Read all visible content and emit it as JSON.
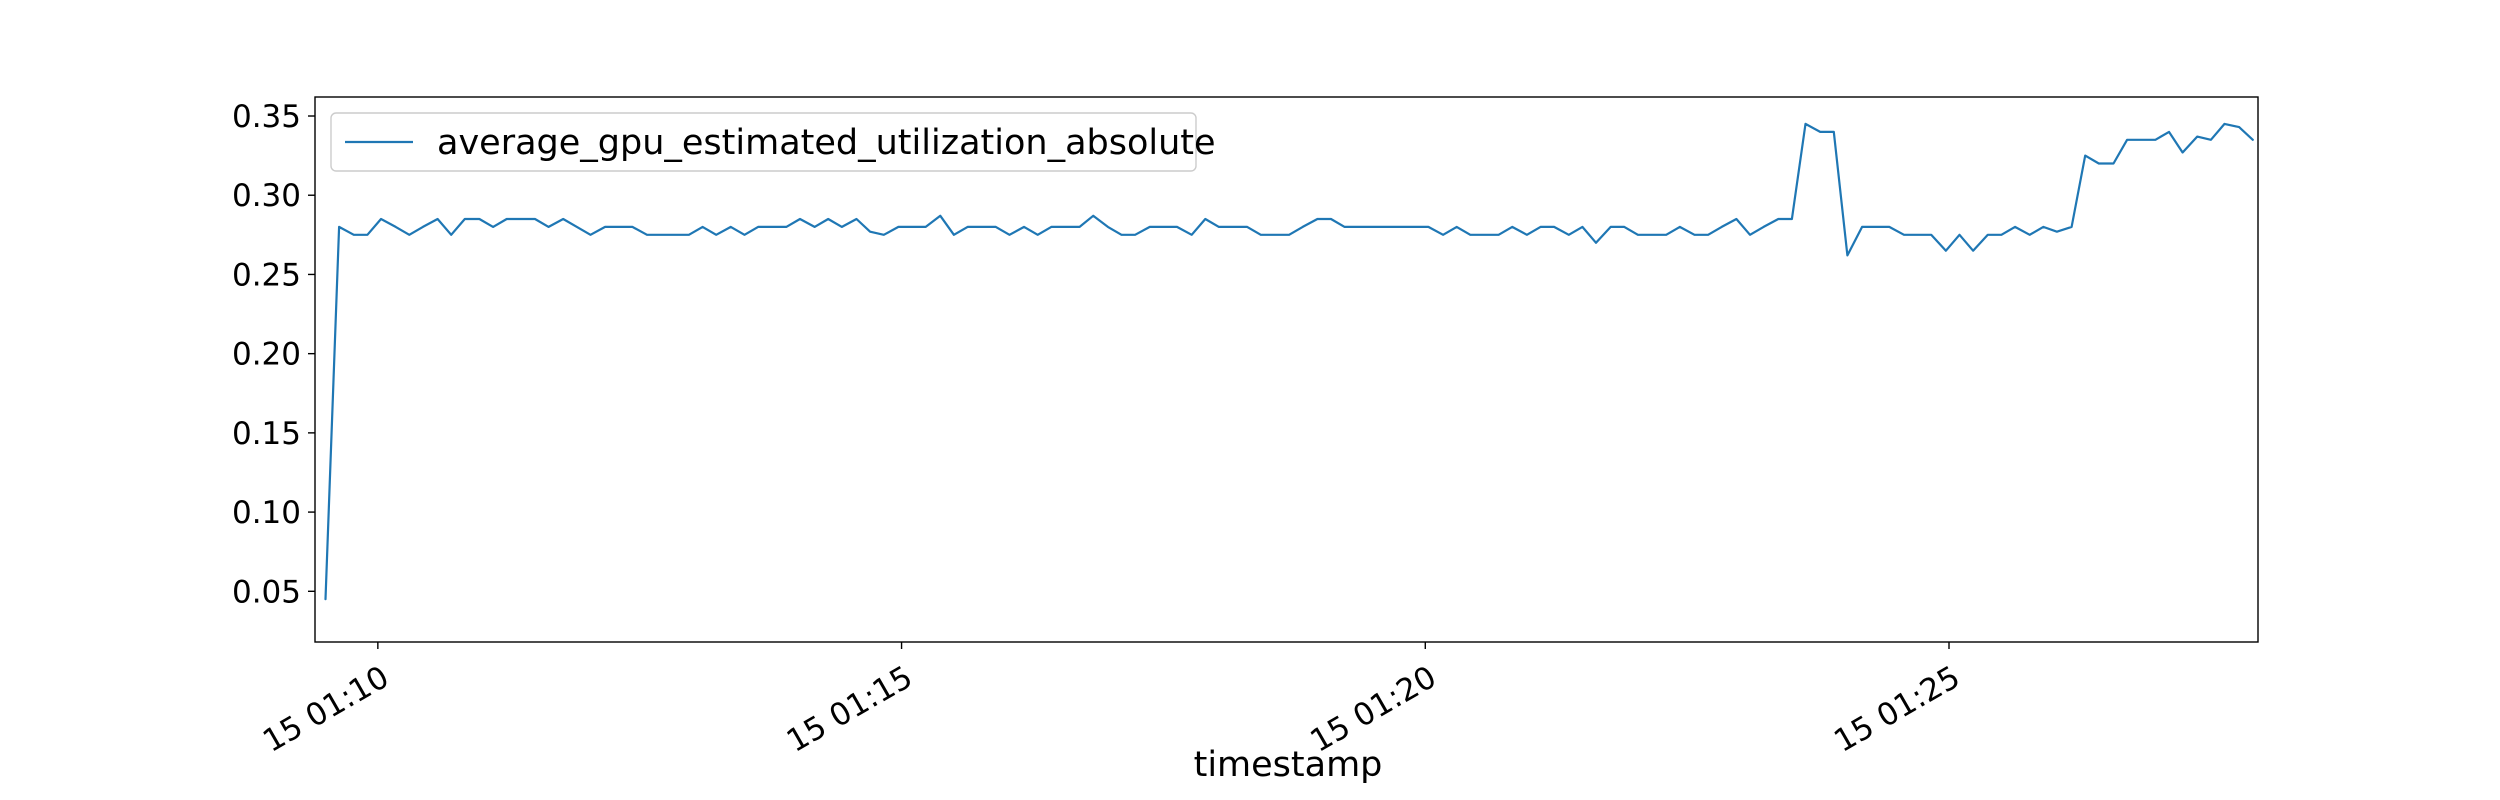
{
  "chart_data": {
    "type": "line",
    "title": "",
    "xlabel": "timestamp",
    "ylabel": "",
    "x_ticks": [
      "15 01:10",
      "15 01:15",
      "15 01:20",
      "15 01:25"
    ],
    "y_ticks": [
      "0.05",
      "0.10",
      "0.15",
      "0.20",
      "0.25",
      "0.30",
      "0.35"
    ],
    "ylim": [
      0.018,
      0.362
    ],
    "grid": false,
    "legend_position": "upper-left",
    "series": [
      {
        "name": "average_gpu_estimated_utilization_absolute",
        "color": "#1f77b4",
        "x_unit": "minutes after 01:00",
        "x": [
          9.5,
          9.63,
          9.77,
          9.9,
          10.03,
          10.17,
          10.3,
          10.43,
          10.57,
          10.7,
          10.83,
          10.97,
          11.1,
          11.23,
          11.37,
          11.5,
          11.63,
          11.77,
          11.9,
          12.03,
          12.17,
          12.3,
          12.43,
          12.57,
          12.7,
          12.83,
          12.97,
          13.1,
          13.23,
          13.37,
          13.5,
          13.63,
          13.77,
          13.9,
          14.03,
          14.17,
          14.3,
          14.43,
          14.57,
          14.7,
          14.83,
          14.97,
          15.1,
          15.23,
          15.37,
          15.5,
          15.63,
          15.77,
          15.9,
          16.03,
          16.17,
          16.3,
          16.43,
          16.57,
          16.7,
          16.83,
          16.97,
          17.1,
          17.23,
          17.37,
          17.5,
          17.63,
          17.77,
          17.9,
          18.03,
          18.17,
          18.3,
          18.43,
          18.57,
          18.7,
          18.83,
          18.97,
          19.1,
          19.23,
          19.37,
          19.5,
          19.63,
          19.77,
          19.9,
          20.03,
          20.17,
          20.3,
          20.43,
          20.57,
          20.7,
          20.83,
          20.97,
          21.1,
          21.23,
          21.37,
          21.5,
          21.63,
          21.77,
          21.9,
          22.03,
          22.17,
          22.3,
          22.43,
          22.57,
          22.7,
          22.83,
          22.97,
          23.1,
          23.23,
          23.37,
          23.5,
          23.63,
          23.77,
          23.9,
          24.03,
          24.17,
          24.3,
          24.43,
          24.57,
          24.7,
          24.83,
          24.97,
          25.1,
          25.23,
          25.37,
          25.5,
          25.63,
          25.77,
          25.9,
          26.03,
          26.17,
          26.3,
          26.43,
          26.57,
          26.7,
          26.83,
          26.97,
          27.1,
          27.23,
          27.37,
          27.5,
          27.63,
          27.77,
          27.9
        ],
        "y": [
          0.045,
          0.28,
          0.275,
          0.275,
          0.285,
          0.28,
          0.275,
          0.28,
          0.285,
          0.275,
          0.285,
          0.285,
          0.28,
          0.285,
          0.285,
          0.285,
          0.28,
          0.285,
          0.28,
          0.275,
          0.28,
          0.28,
          0.28,
          0.275,
          0.275,
          0.275,
          0.275,
          0.28,
          0.275,
          0.28,
          0.275,
          0.28,
          0.28,
          0.28,
          0.285,
          0.28,
          0.285,
          0.28,
          0.285,
          0.277,
          0.275,
          0.28,
          0.28,
          0.28,
          0.287,
          0.275,
          0.28,
          0.28,
          0.28,
          0.275,
          0.28,
          0.275,
          0.28,
          0.28,
          0.28,
          0.287,
          0.28,
          0.275,
          0.275,
          0.28,
          0.28,
          0.28,
          0.275,
          0.285,
          0.28,
          0.28,
          0.28,
          0.275,
          0.275,
          0.275,
          0.28,
          0.285,
          0.285,
          0.28,
          0.28,
          0.28,
          0.28,
          0.28,
          0.28,
          0.28,
          0.275,
          0.28,
          0.275,
          0.275,
          0.275,
          0.28,
          0.275,
          0.28,
          0.28,
          0.275,
          0.28,
          0.27,
          0.28,
          0.28,
          0.275,
          0.275,
          0.275,
          0.28,
          0.275,
          0.275,
          0.28,
          0.285,
          0.275,
          0.28,
          0.285,
          0.285,
          0.345,
          0.34,
          0.34,
          0.262,
          0.28,
          0.28,
          0.28,
          0.275,
          0.275,
          0.275,
          0.265,
          0.275,
          0.265,
          0.275,
          0.275,
          0.28,
          0.275,
          0.28,
          0.277,
          0.28,
          0.325,
          0.32,
          0.32,
          0.335,
          0.335,
          0.335,
          0.34,
          0.327,
          0.337,
          0.335,
          0.345,
          0.343,
          0.335
        ]
      }
    ]
  }
}
